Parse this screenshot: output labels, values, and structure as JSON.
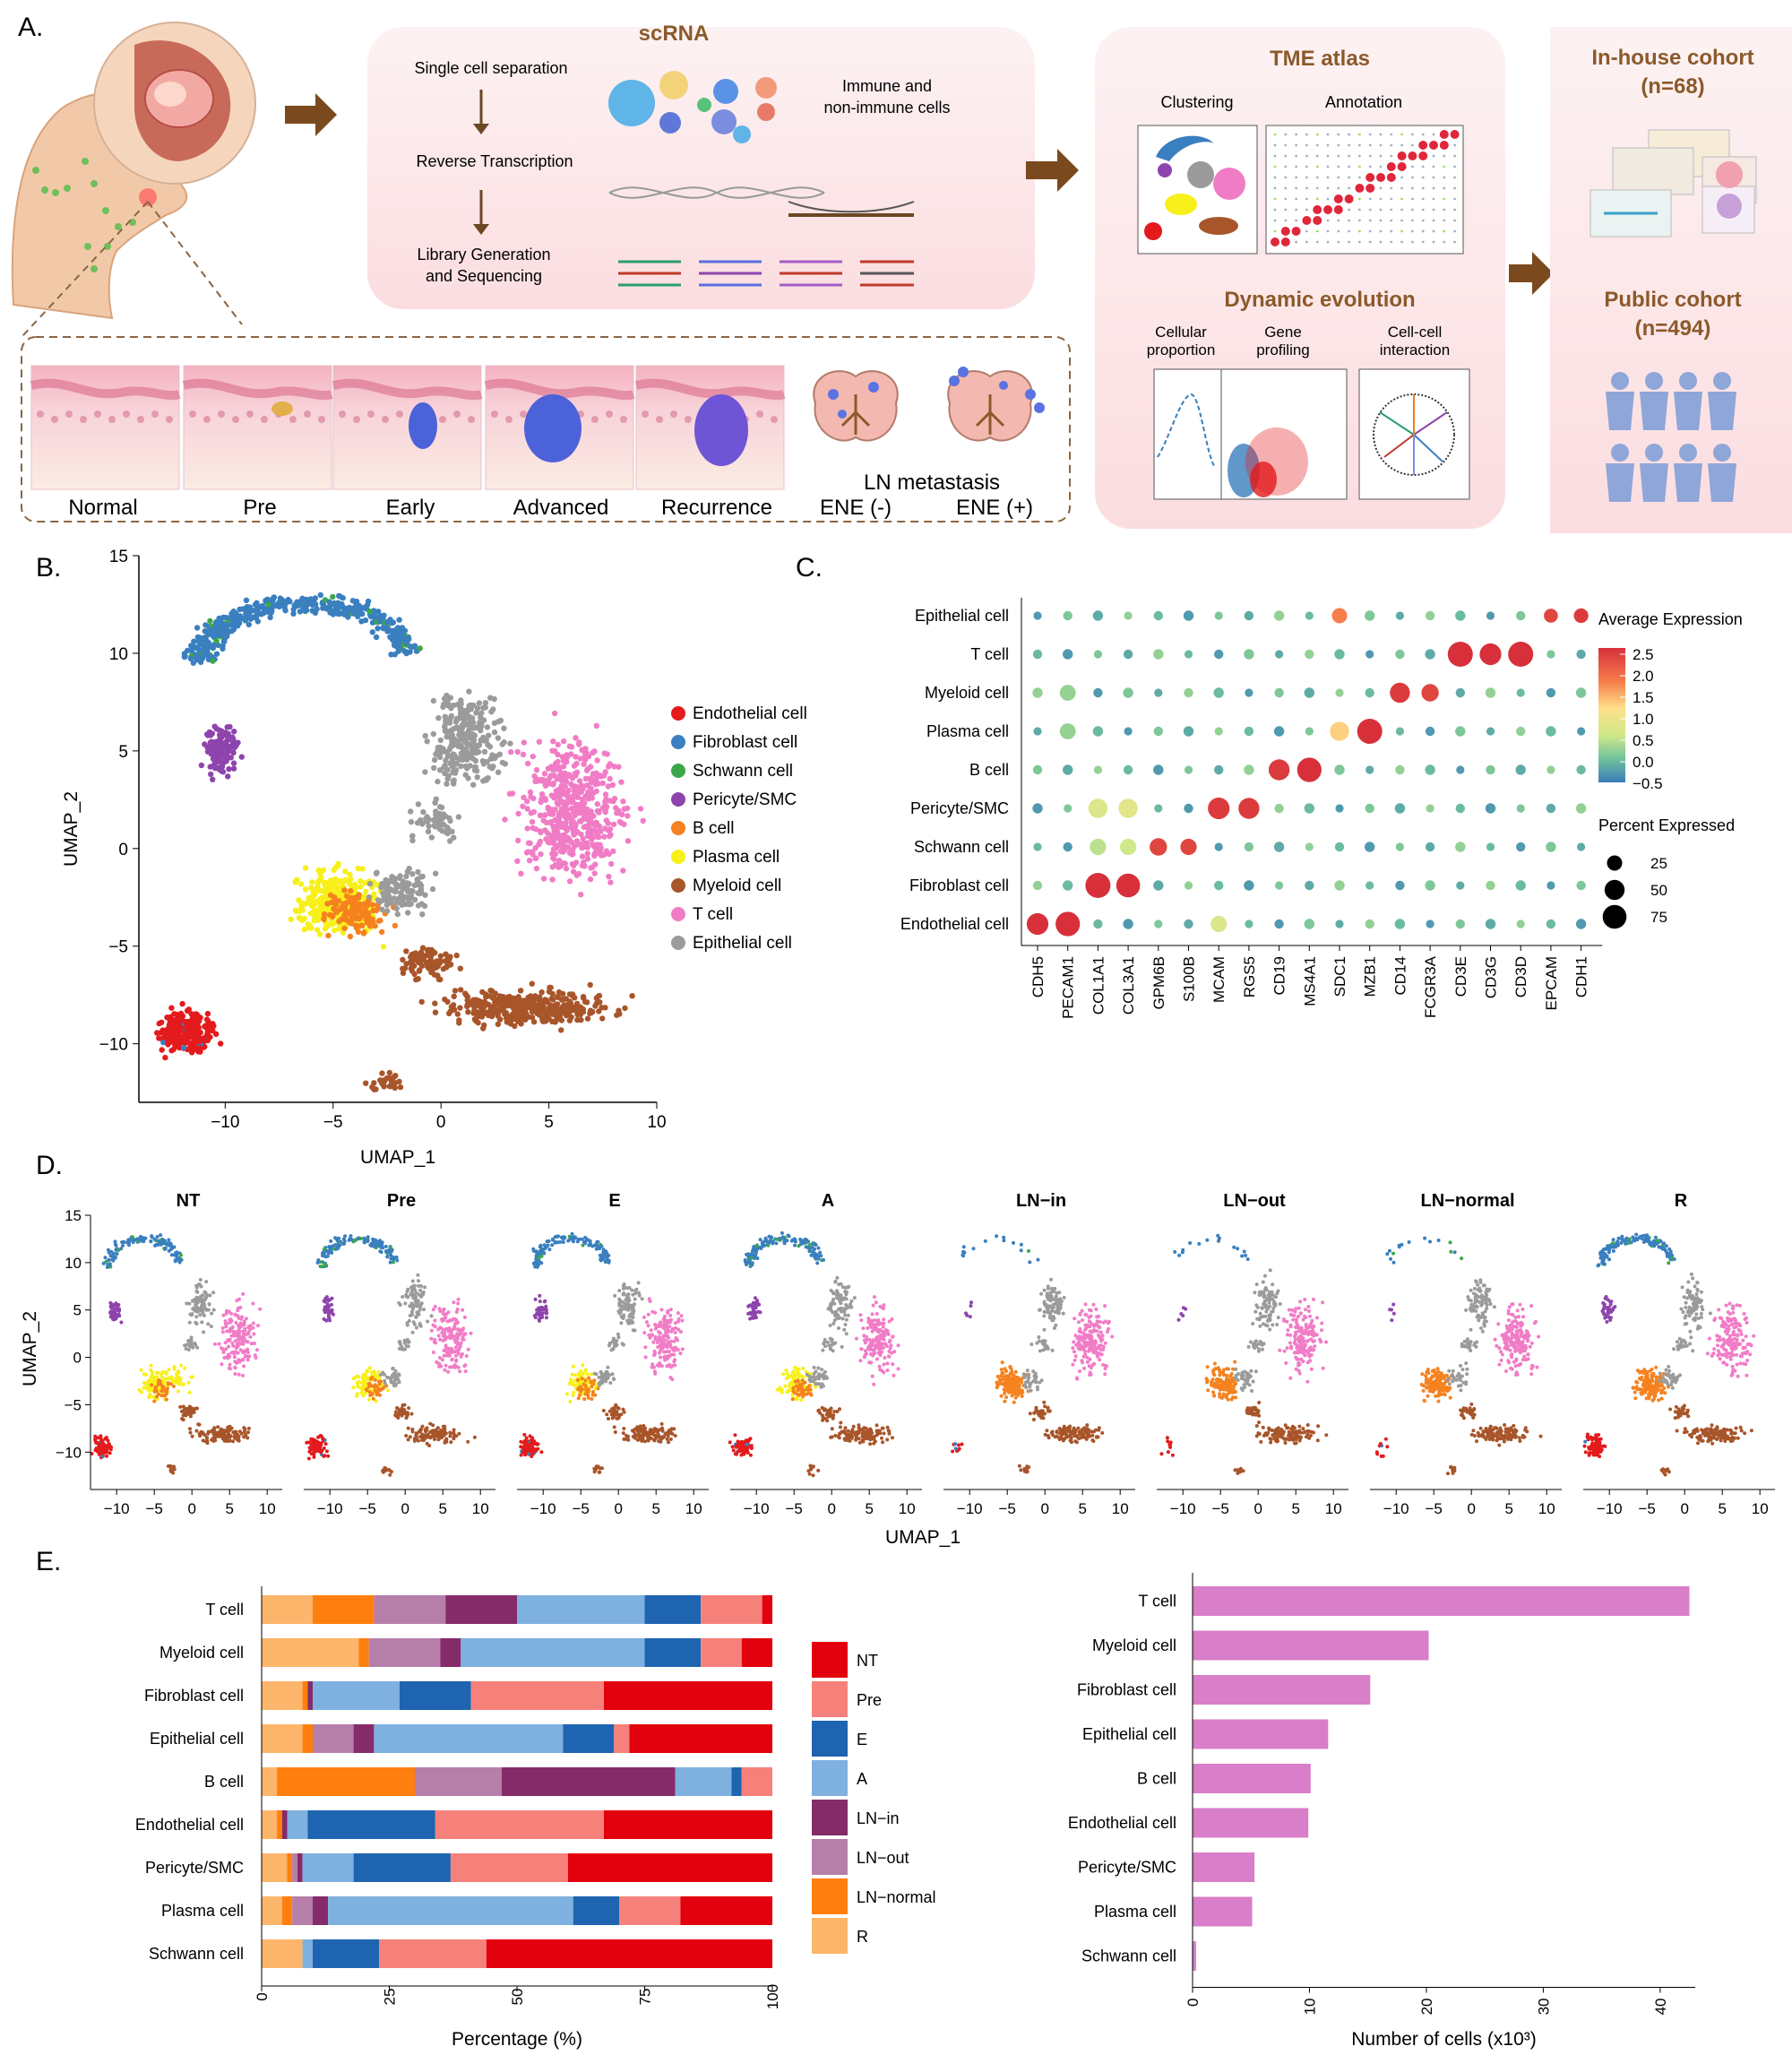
{
  "panel_labels": {
    "a": "A.",
    "b": "B.",
    "c": "C.",
    "d": "D.",
    "e": "E."
  },
  "colors": {
    "Endothelial cell": "#e41a1c",
    "Fibroblast cell": "#3a7fbf",
    "Schwann cell": "#3aa84a",
    "Pericyte/SMC": "#8e44ad",
    "B cell": "#f5821f",
    "Plasma cell": "#f7f01a",
    "Myeloid cell": "#a8552a",
    "T cell": "#f17cc6",
    "Epithelial cell": "#9b9b9b",
    "pink_bg": "#fde8ea",
    "brown_text": "#8b5a2b",
    "arrow": "#7a4a1e",
    "bar_pink": "#d97ec8"
  },
  "panel_a": {
    "scrna_title": "scRNA",
    "steps": [
      "Single cell separation",
      "Reverse Transcription",
      "Library Generation",
      "and Sequencing"
    ],
    "immune_label": [
      "Immune and",
      "non-immune cells"
    ],
    "stages": [
      "Normal",
      "Pre",
      "Early",
      "Advanced",
      "Recurrence"
    ],
    "ln_title": "LN metastasis",
    "ln_labels": [
      "ENE (-)",
      "ENE (+)"
    ],
    "tme_title": "TME atlas",
    "clustering": "Clustering",
    "annotation": "Annotation",
    "dyn_title": "Dynamic evolution",
    "dyn_cellular": [
      "Cellular",
      "proportion"
    ],
    "dyn_gene": [
      "Gene",
      "profiling"
    ],
    "dyn_cc": [
      "Cell-cell",
      "interaction"
    ],
    "inhouse_title": "In-house cohort",
    "inhouse_n": "(n=68)",
    "public_title": "Public cohort",
    "public_n": "(n=494)"
  },
  "chart_data": [
    {
      "type": "scatter",
      "title": "",
      "xlabel": "UMAP_1",
      "ylabel": "UMAP_2",
      "xlim": [
        -14,
        10
      ],
      "ylim": [
        -13,
        15
      ],
      "xticks": [
        -10,
        -5,
        0,
        5,
        10
      ],
      "yticks": [
        15,
        10,
        5,
        0,
        -5,
        -10
      ],
      "legend": [
        "Endothelial cell",
        "Fibroblast cell",
        "Schwann cell",
        "Pericyte/SMC",
        "B cell",
        "Plasma cell",
        "Myeloid cell",
        "T cell",
        "Epithelial cell"
      ]
    },
    {
      "type": "scatter",
      "subtype": "dotplot",
      "genes": [
        "CDH5",
        "PECAM1",
        "COL1A1",
        "COL3A1",
        "GPM6B",
        "S100B",
        "MCAM",
        "RGS5",
        "CD19",
        "MS4A1",
        "SDC1",
        "MZB1",
        "CD14",
        "FCGR3A",
        "CD3E",
        "CD3G",
        "CD3D",
        "EPCAM",
        "CDH1"
      ],
      "cell_types": [
        "Epithelial cell",
        "T cell",
        "Myeloid cell",
        "Plasma cell",
        "B cell",
        "Pericyte/SMC",
        "Schwann cell",
        "Fibroblast cell",
        "Endothelial cell"
      ],
      "highlights": [
        {
          "row": "Endothelial cell",
          "gene": "CDH5",
          "expr": 2.5,
          "pct": 60
        },
        {
          "row": "Endothelial cell",
          "gene": "PECAM1",
          "expr": 2.5,
          "pct": 80
        },
        {
          "row": "Fibroblast cell",
          "gene": "COL1A1",
          "expr": 2.5,
          "pct": 85
        },
        {
          "row": "Fibroblast cell",
          "gene": "COL3A1",
          "expr": 2.5,
          "pct": 75
        },
        {
          "row": "Schwann cell",
          "gene": "GPM6B",
          "expr": 2.3,
          "pct": 35
        },
        {
          "row": "Schwann cell",
          "gene": "S100B",
          "expr": 2.3,
          "pct": 30
        },
        {
          "row": "Pericyte/SMC",
          "gene": "MCAM",
          "expr": 2.4,
          "pct": 60
        },
        {
          "row": "Pericyte/SMC",
          "gene": "RGS5",
          "expr": 2.4,
          "pct": 55
        },
        {
          "row": "B cell",
          "gene": "CD19",
          "expr": 2.4,
          "pct": 55
        },
        {
          "row": "B cell",
          "gene": "MS4A1",
          "expr": 2.5,
          "pct": 80
        },
        {
          "row": "Plasma cell",
          "gene": "SDC1",
          "expr": 1.3,
          "pct": 45
        },
        {
          "row": "Plasma cell",
          "gene": "MZB1",
          "expr": 2.5,
          "pct": 85
        },
        {
          "row": "Myeloid cell",
          "gene": "CD14",
          "expr": 2.4,
          "pct": 50
        },
        {
          "row": "Myeloid cell",
          "gene": "FCGR3A",
          "expr": 2.3,
          "pct": 35
        },
        {
          "row": "T cell",
          "gene": "CD3E",
          "expr": 2.5,
          "pct": 85
        },
        {
          "row": "T cell",
          "gene": "CD3G",
          "expr": 2.5,
          "pct": 60
        },
        {
          "row": "T cell",
          "gene": "CD3D",
          "expr": 2.5,
          "pct": 85
        },
        {
          "row": "Epithelial cell",
          "gene": "SDC1",
          "expr": 1.8,
          "pct": 25
        },
        {
          "row": "Epithelial cell",
          "gene": "EPCAM",
          "expr": 2.3,
          "pct": 20
        },
        {
          "row": "Epithelial cell",
          "gene": "CDH1",
          "expr": 2.4,
          "pct": 22
        },
        {
          "row": "Pericyte/SMC",
          "gene": "COL1A1",
          "expr": 0.7,
          "pct": 45
        },
        {
          "row": "Pericyte/SMC",
          "gene": "COL3A1",
          "expr": 0.8,
          "pct": 45
        },
        {
          "row": "Schwann cell",
          "gene": "COL1A1",
          "expr": 0.4,
          "pct": 30
        },
        {
          "row": "Schwann cell",
          "gene": "COL3A1",
          "expr": 0.5,
          "pct": 30
        },
        {
          "row": "Myeloid cell",
          "gene": "PECAM1",
          "expr": 0.2,
          "pct": 28
        },
        {
          "row": "Plasma cell",
          "gene": "PECAM1",
          "expr": 0.2,
          "pct": 28
        },
        {
          "row": "Endothelial cell",
          "gene": "MCAM",
          "expr": 0.7,
          "pct": 30
        }
      ],
      "legend_expression_title": "Average Expression",
      "expression_ticks": [
        "2.5",
        "2.0",
        "1.5",
        "1.0",
        "0.5",
        "0.0",
        "−0.5"
      ],
      "legend_percent_title": "Percent Expressed",
      "percent_ticks": [
        "25",
        "50",
        "75"
      ]
    },
    {
      "type": "scatter",
      "subtype": "umap-facets",
      "facets": [
        "NT",
        "Pre",
        "E",
        "A",
        "LN−in",
        "LN−out",
        "LN−normal",
        "R"
      ],
      "xlabel": "UMAP_1",
      "ylabel": "UMAP_2",
      "xticks": [
        "−10",
        "−5",
        "0",
        "5",
        "10"
      ],
      "yticks": [
        "15",
        "10",
        "5",
        "0",
        "−5",
        "−10"
      ]
    },
    {
      "type": "bar",
      "subtype": "stacked-horizontal-percent",
      "categories": [
        "T cell",
        "Myeloid cell",
        "Fibroblast cell",
        "Epithelial cell",
        "B cell",
        "Endothelial cell",
        "Pericyte/SMC",
        "Plasma cell",
        "Schwann cell"
      ],
      "series": [
        {
          "name": "R",
          "color": "#fdb56b",
          "values": [
            10,
            19,
            8,
            8,
            3,
            3,
            5,
            4,
            8
          ]
        },
        {
          "name": "LN−normal",
          "color": "#ff7f0e",
          "values": [
            12,
            2,
            1,
            2,
            27,
            1,
            1,
            2,
            0
          ]
        },
        {
          "name": "LN−out",
          "color": "#b67faa",
          "values": [
            14,
            14,
            0,
            8,
            17,
            0,
            1,
            4,
            0
          ]
        },
        {
          "name": "LN−in",
          "color": "#862b6a",
          "values": [
            14,
            4,
            1,
            4,
            34,
            1,
            1,
            3,
            0
          ]
        },
        {
          "name": "A",
          "color": "#7fb1e0",
          "values": [
            25,
            36,
            17,
            37,
            11,
            4,
            10,
            48,
            2
          ]
        },
        {
          "name": "E",
          "color": "#1f64b0",
          "values": [
            11,
            11,
            14,
            10,
            2,
            25,
            19,
            9,
            13
          ]
        },
        {
          "name": "Pre",
          "color": "#f6817a",
          "values": [
            12,
            8,
            26,
            3,
            6,
            33,
            23,
            12,
            21
          ]
        },
        {
          "name": "NT",
          "color": "#e3000e",
          "values": [
            2,
            6,
            33,
            28,
            0,
            33,
            40,
            18,
            56
          ]
        }
      ],
      "xlabel": "Percentage (%)",
      "xlim": [
        0,
        100
      ],
      "xticks": [
        0,
        25,
        50,
        75,
        100
      ],
      "legend_order": [
        "NT",
        "Pre",
        "E",
        "A",
        "LN−in",
        "LN−out",
        "LN−normal",
        "R"
      ]
    },
    {
      "type": "bar",
      "subtype": "horizontal",
      "categories": [
        "T cell",
        "Myeloid cell",
        "Fibroblast cell",
        "Epithelial cell",
        "B cell",
        "Endothelial cell",
        "Pericyte/SMC",
        "Plasma cell",
        "Schwann cell"
      ],
      "values": [
        42.5,
        20.2,
        15.2,
        11.6,
        10.1,
        9.9,
        5.3,
        5.1,
        0.3
      ],
      "xlabel": "Number of cells (x10³)",
      "xlim": [
        0,
        43
      ],
      "xticks": [
        0,
        10,
        20,
        30,
        40
      ]
    }
  ]
}
